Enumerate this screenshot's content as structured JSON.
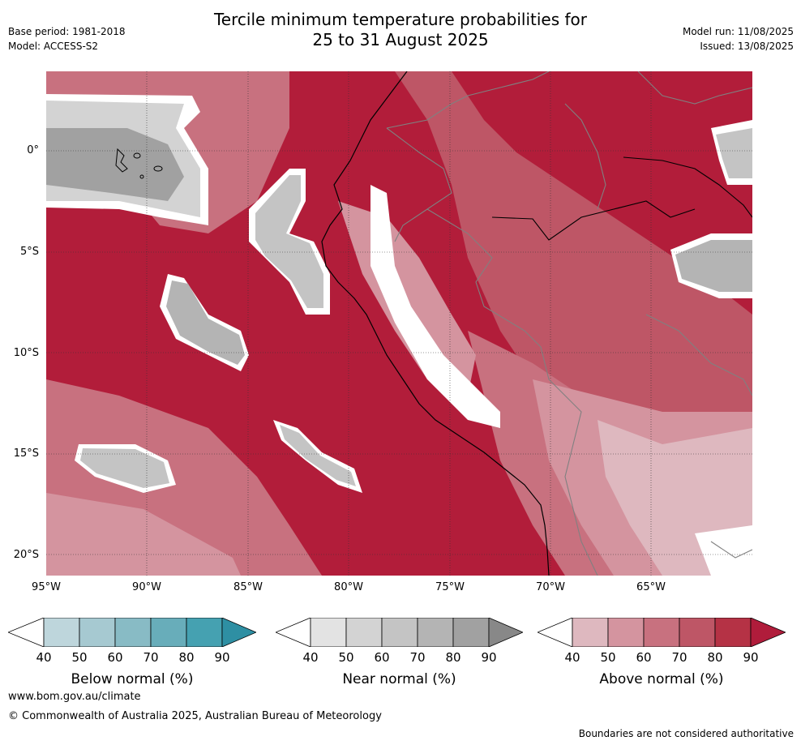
{
  "header": {
    "title_line1": "Tercile minimum temperature probabilities for",
    "title_line2": "25 to 31 August 2025",
    "base_period": "Base period: 1981-2018",
    "model": "Model: ACCESS-S2",
    "model_run": "Model run: 11/08/2025",
    "issued": "Issued: 13/08/2025"
  },
  "map": {
    "lat_ticks": [
      "0°",
      "5°S",
      "10°S",
      "15°S",
      "20°S"
    ],
    "lon_ticks": [
      "95°W",
      "90°W",
      "85°W",
      "80°W",
      "75°W",
      "70°W",
      "65°W"
    ],
    "dominant_category": "Above normal",
    "background_level_color": "#b21d3a"
  },
  "colorbars": [
    {
      "label": "Below normal (%)",
      "ticks": [
        "40",
        "50",
        "60",
        "70",
        "80",
        "90"
      ],
      "colors": [
        "#bed6dc",
        "#a6c9d1",
        "#88bbc5",
        "#68adba",
        "#45a1b1",
        "#2e8fa3"
      ]
    },
    {
      "label": "Near normal (%)",
      "ticks": [
        "40",
        "50",
        "60",
        "70",
        "80",
        "90"
      ],
      "colors": [
        "#e3e3e3",
        "#d3d3d3",
        "#c4c4c4",
        "#b4b4b4",
        "#a1a1a1",
        "#888888"
      ]
    },
    {
      "label": "Above normal (%)",
      "ticks": [
        "40",
        "50",
        "60",
        "70",
        "80",
        "90"
      ],
      "colors": [
        "#deb8bf",
        "#d4949f",
        "#c8717f",
        "#be5666",
        "#b53245",
        "#b01c3b"
      ]
    }
  ],
  "footer": {
    "website": "www.bom.gov.au/climate",
    "copyright": "© Commonwealth of Australia 2025, Australian Bureau of Meteorology",
    "disclaimer": "Boundaries are not considered authoritative"
  }
}
